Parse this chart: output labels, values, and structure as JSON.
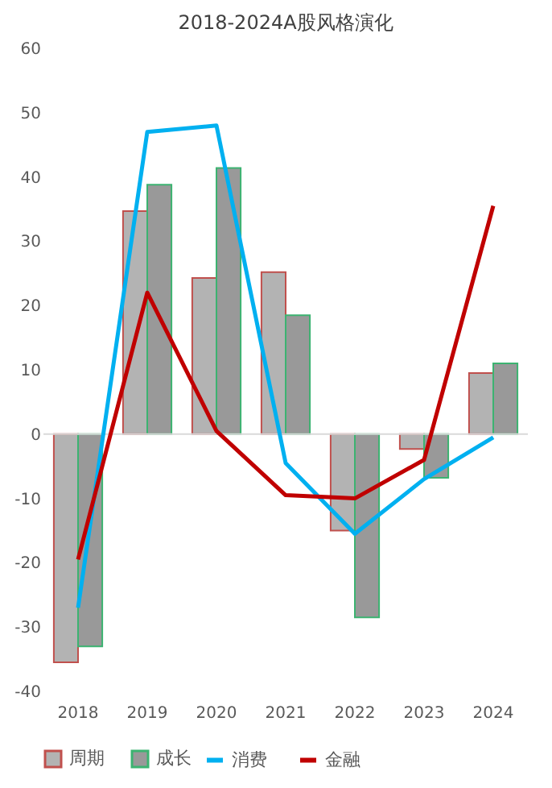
{
  "chart_data": {
    "type": "bar",
    "title": "2018-2024A股风格演化",
    "categories": [
      "2018",
      "2019",
      "2020",
      "2021",
      "2022",
      "2023",
      "2024"
    ],
    "series": [
      {
        "name": "周期",
        "color": "#b3b3b3",
        "values": [
          -35.5,
          34.7,
          24.3,
          25.2,
          -15,
          -2.3,
          9.5
        ]
      },
      {
        "name": "成长",
        "color": "#999999",
        "values": [
          -33,
          38.8,
          41.4,
          18.5,
          -28.5,
          -6.8,
          11
        ]
      },
      {
        "name": "消费",
        "type": "line",
        "color": "#00b0f0",
        "values": [
          -27,
          47,
          48,
          -4.5,
          -15.5,
          -7,
          -0.5
        ]
      },
      {
        "name": "金融",
        "type": "line",
        "color": "#c00000",
        "values": [
          -19.5,
          22,
          0.5,
          -9.5,
          -10,
          -4,
          35.5
        ]
      }
    ],
    "ylim": [
      -40,
      60
    ],
    "yticks": [
      -40,
      -30,
      -20,
      -10,
      0,
      10,
      20,
      30,
      40,
      50,
      60
    ],
    "ref_lines": [
      {
        "axis": "y",
        "value": 0,
        "label": null,
        "color": "#d9d9d9"
      }
    ],
    "grid": false,
    "legend": "bottom",
    "marker": "none",
    "line_style": "solid"
  }
}
